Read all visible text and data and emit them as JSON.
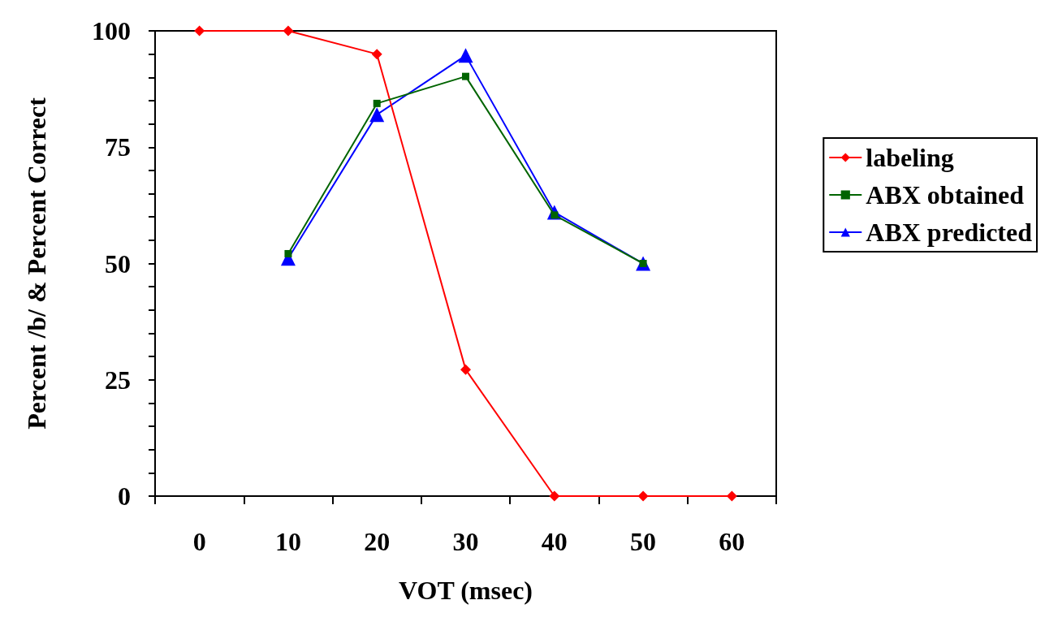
{
  "chart_data": {
    "type": "line",
    "xlabel": "VOT (msec)",
    "ylabel": "Percent /b/ & Percent Correct",
    "categories": [
      "0",
      "10",
      "20",
      "30",
      "40",
      "50",
      "60"
    ],
    "ylim": [
      0,
      100
    ],
    "yticks": [
      0,
      {
        "value": 5,
        "label": null
      },
      {
        "value": 10,
        "label": null
      },
      {
        "value": 15,
        "label": null
      },
      {
        "value": 20,
        "label": null
      },
      25,
      {
        "value": 30,
        "label": null
      },
      {
        "value": 35,
        "label": null
      },
      {
        "value": 40,
        "label": null
      },
      {
        "value": 45,
        "label": null
      },
      50,
      {
        "value": 55,
        "label": null
      },
      {
        "value": 60,
        "label": null
      },
      {
        "value": 65,
        "label": null
      },
      {
        "value": 70,
        "label": null
      },
      75,
      {
        "value": 80,
        "label": null
      },
      {
        "value": 85,
        "label": null
      },
      {
        "value": 90,
        "label": null
      },
      {
        "value": 95,
        "label": null
      },
      100
    ],
    "grid": false,
    "legend": "right",
    "series": [
      {
        "name": "labeling",
        "color": "#ff0000",
        "marker": "diamond",
        "values": [
          100,
          100,
          95,
          27.2,
          0,
          0,
          0
        ]
      },
      {
        "name": "ABX obtained",
        "color": "#006400",
        "marker": "square",
        "values": [
          null,
          52.1,
          84.4,
          90.2,
          60.4,
          50,
          null
        ]
      },
      {
        "name": "ABX predicted",
        "color": "#0000ff",
        "marker": "triangle",
        "values": [
          null,
          51.1,
          82,
          94.7,
          61,
          50,
          null
        ]
      }
    ]
  }
}
